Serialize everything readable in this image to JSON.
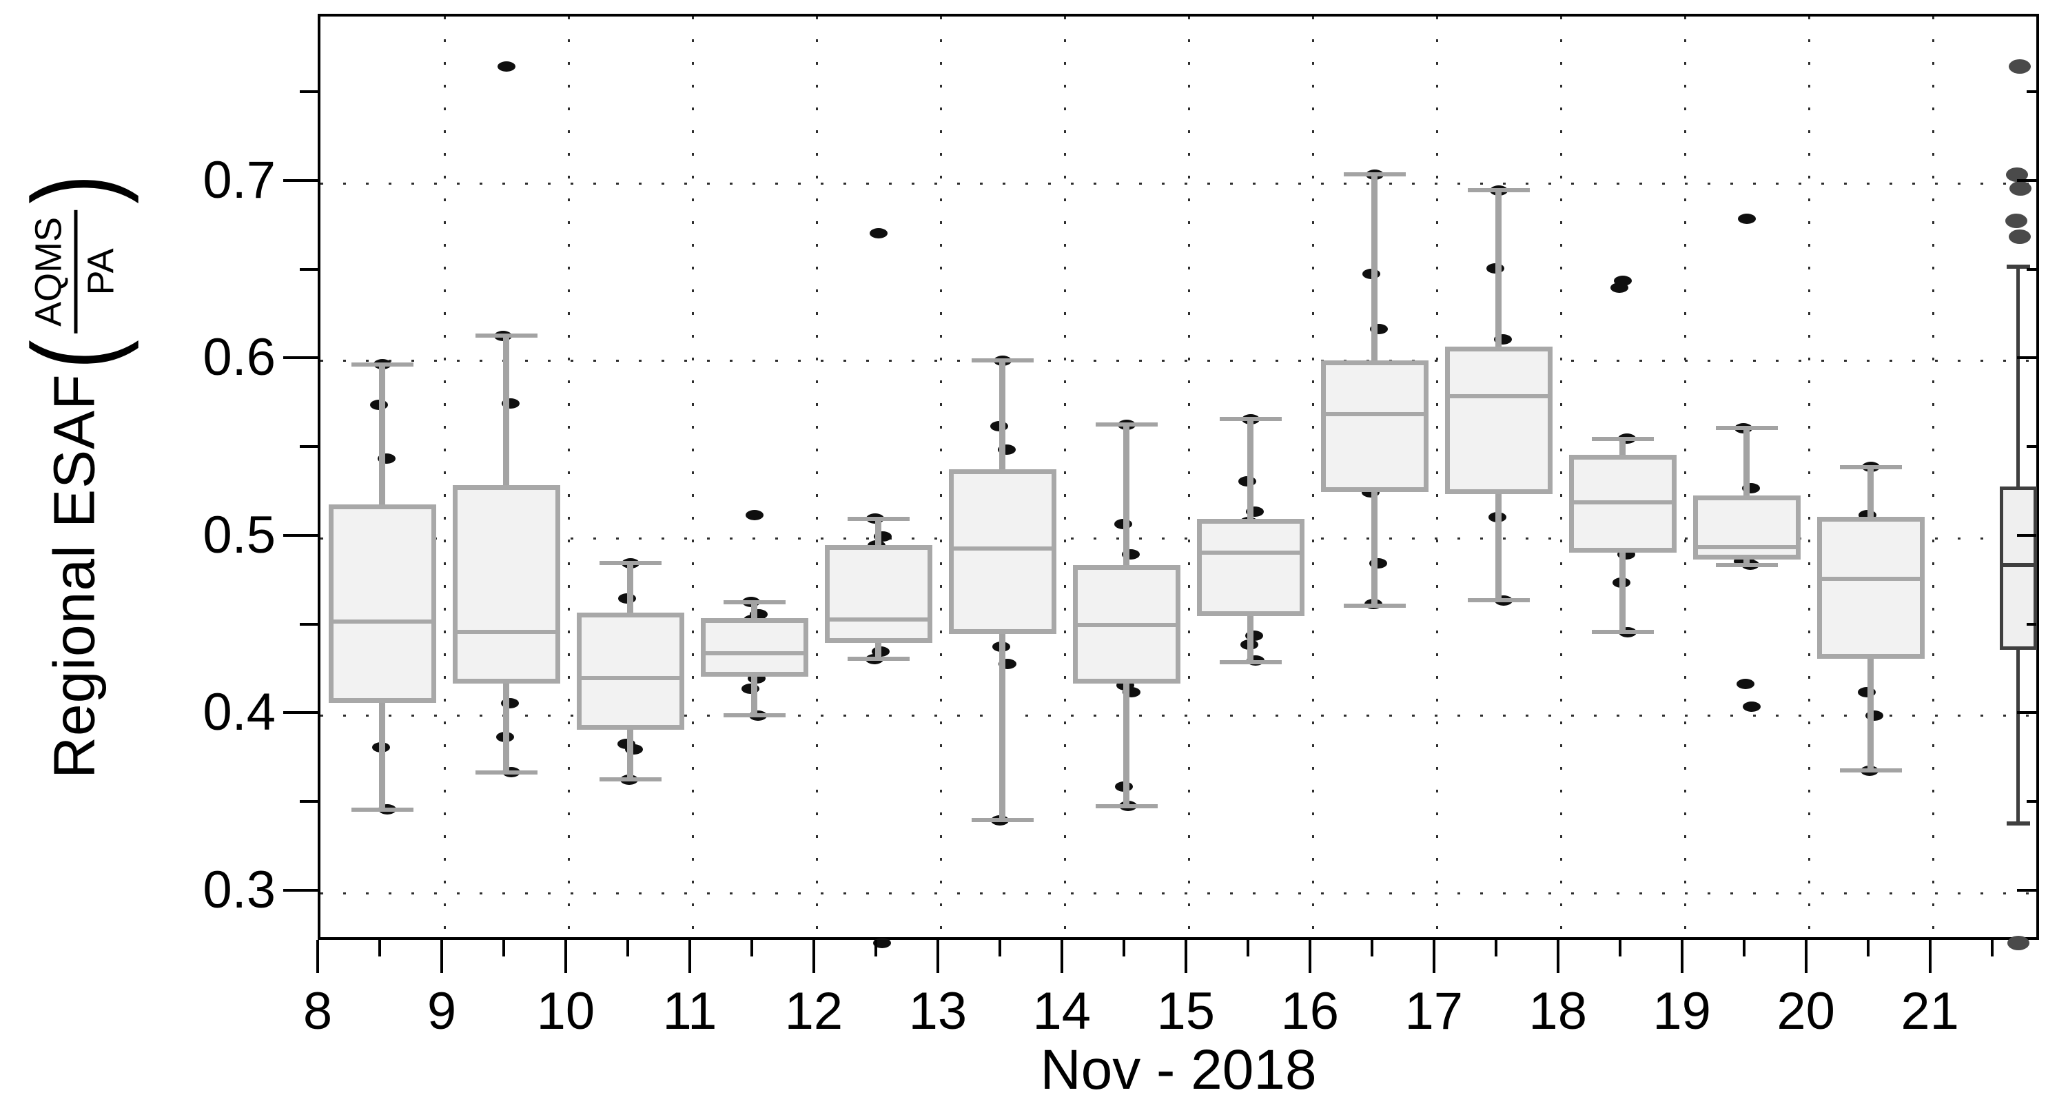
{
  "figure": {
    "xlabel": "Nov - 2018",
    "ylabel_prefix": "Regional ESAF",
    "ylabel_open_paren": "(",
    "ylabel_close_paren": ")",
    "ylabel_frac_numerator": "AQMS",
    "ylabel_frac_denominator": "PA"
  },
  "chart_data": {
    "type": "boxplot",
    "title": "",
    "xlabel": "Nov - 2018",
    "ylabel": "Regional ESAF (AQMS/PA)",
    "xlim": [
      8,
      21.88
    ],
    "ylim": [
      0.272,
      0.794
    ],
    "grid": {
      "style": "dotted",
      "on": "major-both-axes",
      "color": "#2e2e2e"
    },
    "legend": null,
    "x_major_ticks": [
      8,
      9,
      10,
      11,
      12,
      13,
      14,
      15,
      16,
      17,
      18,
      19,
      20,
      21
    ],
    "x_tick_labels": [
      "8",
      "9",
      "10",
      "11",
      "12",
      "13",
      "14",
      "15",
      "16",
      "17",
      "18",
      "19",
      "20",
      "21"
    ],
    "x_minor_ticks": [
      8.5,
      9.5,
      10.5,
      11.5,
      12.5,
      13.5,
      14.5,
      15.5,
      16.5,
      17.5,
      18.5,
      19.5,
      20.5,
      21.5
    ],
    "y_major_ticks": [
      0.3,
      0.4,
      0.5,
      0.6,
      0.7
    ],
    "y_tick_labels": [
      "0.3",
      "0.4",
      "0.5",
      "0.6",
      "0.7"
    ],
    "y_minor_ticks": [
      0.35,
      0.45,
      0.55,
      0.65,
      0.75
    ],
    "colors": {
      "box_fill": "#f2f2f2",
      "box_edge": "#a8a8a8",
      "whisker": "#a3a3a3",
      "point": "#0f0f0f",
      "summary_edge": "#3f3f3f",
      "summary_fill": "#efefef",
      "summary_point": "#4a4a4a",
      "frame": "#000000"
    },
    "series": [
      {
        "style": "daily",
        "x": 8.5,
        "whisker_low": 0.347,
        "q1": 0.407,
        "median": 0.453,
        "q3": 0.519,
        "whisker_high": 0.598,
        "points": [
          0.598,
          0.575,
          0.545,
          0.491,
          0.487,
          0.454,
          0.446,
          0.439,
          0.41,
          0.382,
          0.347
        ]
      },
      {
        "style": "daily",
        "x": 9.5,
        "whisker_low": 0.368,
        "q1": 0.418,
        "median": 0.447,
        "q3": 0.53,
        "whisker_high": 0.614,
        "points": [
          0.766,
          0.614,
          0.576,
          0.482,
          0.473,
          0.452,
          0.443,
          0.428,
          0.407,
          0.388,
          0.368
        ]
      },
      {
        "style": "daily",
        "x": 10.5,
        "whisker_low": 0.364,
        "q1": 0.392,
        "median": 0.421,
        "q3": 0.458,
        "whisker_high": 0.486,
        "points": [
          0.486,
          0.466,
          0.452,
          0.427,
          0.42,
          0.414,
          0.4,
          0.384,
          0.381,
          0.364
        ]
      },
      {
        "style": "daily",
        "x": 11.5,
        "whisker_low": 0.4,
        "q1": 0.422,
        "median": 0.435,
        "q3": 0.455,
        "whisker_high": 0.464,
        "points": [
          0.513,
          0.464,
          0.457,
          0.454,
          0.443,
          0.43,
          0.421,
          0.415,
          0.4
        ]
      },
      {
        "style": "daily",
        "x": 12.5,
        "whisker_low": 0.432,
        "q1": 0.441,
        "median": 0.454,
        "q3": 0.496,
        "whisker_high": 0.511,
        "points": [
          0.672,
          0.511,
          0.501,
          0.496,
          0.456,
          0.446,
          0.436,
          0.432,
          0.272
        ]
      },
      {
        "style": "daily",
        "x": 13.5,
        "whisker_low": 0.341,
        "q1": 0.446,
        "median": 0.494,
        "q3": 0.539,
        "whisker_high": 0.6,
        "points": [
          0.6,
          0.563,
          0.55,
          0.529,
          0.501,
          0.499,
          0.489,
          0.465,
          0.455,
          0.439,
          0.429,
          0.341
        ]
      },
      {
        "style": "daily",
        "x": 14.5,
        "whisker_low": 0.349,
        "q1": 0.418,
        "median": 0.451,
        "q3": 0.485,
        "whisker_high": 0.564,
        "points": [
          0.564,
          0.508,
          0.491,
          0.481,
          0.472,
          0.454,
          0.446,
          0.435,
          0.425,
          0.417,
          0.413,
          0.36,
          0.349
        ]
      },
      {
        "style": "daily",
        "x": 15.5,
        "whisker_low": 0.43,
        "q1": 0.456,
        "median": 0.492,
        "q3": 0.511,
        "whisker_high": 0.567,
        "points": [
          0.567,
          0.532,
          0.515,
          0.509,
          0.506,
          0.496,
          0.481,
          0.465,
          0.445,
          0.44,
          0.431
        ]
      },
      {
        "style": "daily",
        "x": 16.5,
        "whisker_low": 0.462,
        "q1": 0.526,
        "median": 0.57,
        "q3": 0.6,
        "whisker_high": 0.705,
        "points": [
          0.705,
          0.649,
          0.618,
          0.578,
          0.575,
          0.563,
          0.557,
          0.526,
          0.486,
          0.463
        ]
      },
      {
        "style": "daily",
        "x": 17.5,
        "whisker_low": 0.465,
        "q1": 0.525,
        "median": 0.58,
        "q3": 0.608,
        "whisker_high": 0.696,
        "points": [
          0.696,
          0.652,
          0.612,
          0.602,
          0.594,
          0.591,
          0.567,
          0.553,
          0.537,
          0.512,
          0.465
        ]
      },
      {
        "style": "daily",
        "x": 18.5,
        "whisker_low": 0.447,
        "q1": 0.492,
        "median": 0.52,
        "q3": 0.547,
        "whisker_high": 0.556,
        "points": [
          0.645,
          0.641,
          0.556,
          0.536,
          0.533,
          0.523,
          0.521,
          0.519,
          0.491,
          0.475,
          0.447
        ]
      },
      {
        "style": "daily",
        "x": 19.5,
        "whisker_low": 0.485,
        "q1": 0.488,
        "median": 0.495,
        "q3": 0.524,
        "whisker_high": 0.562,
        "points": [
          0.68,
          0.562,
          0.528,
          0.519,
          0.509,
          0.501,
          0.49,
          0.487,
          0.485,
          0.418,
          0.405
        ]
      },
      {
        "style": "daily",
        "x": 20.5,
        "whisker_low": 0.369,
        "q1": 0.432,
        "median": 0.477,
        "q3": 0.512,
        "whisker_high": 0.54,
        "points": [
          0.54,
          0.513,
          0.492,
          0.478,
          0.476,
          0.474,
          0.447,
          0.413,
          0.4,
          0.369
        ]
      },
      {
        "style": "summary",
        "x": 21.69,
        "whisker_low": 0.339,
        "q1": 0.437,
        "median": 0.485,
        "q3": 0.529,
        "whisker_high": 0.653,
        "points": [
          0.766,
          0.705,
          0.697,
          0.679,
          0.67,
          0.272
        ]
      }
    ]
  }
}
